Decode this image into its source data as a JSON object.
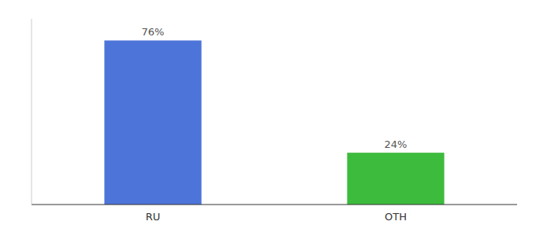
{
  "chart_data": {
    "type": "bar",
    "categories": [
      "RU",
      "OTH"
    ],
    "values": [
      76,
      24
    ],
    "value_labels": [
      "76%",
      "24%"
    ],
    "colors": [
      "#4d75d9",
      "#3dbb3d"
    ],
    "ylim": [
      0,
      86
    ],
    "data_labels": true,
    "tick_labels": "x"
  }
}
